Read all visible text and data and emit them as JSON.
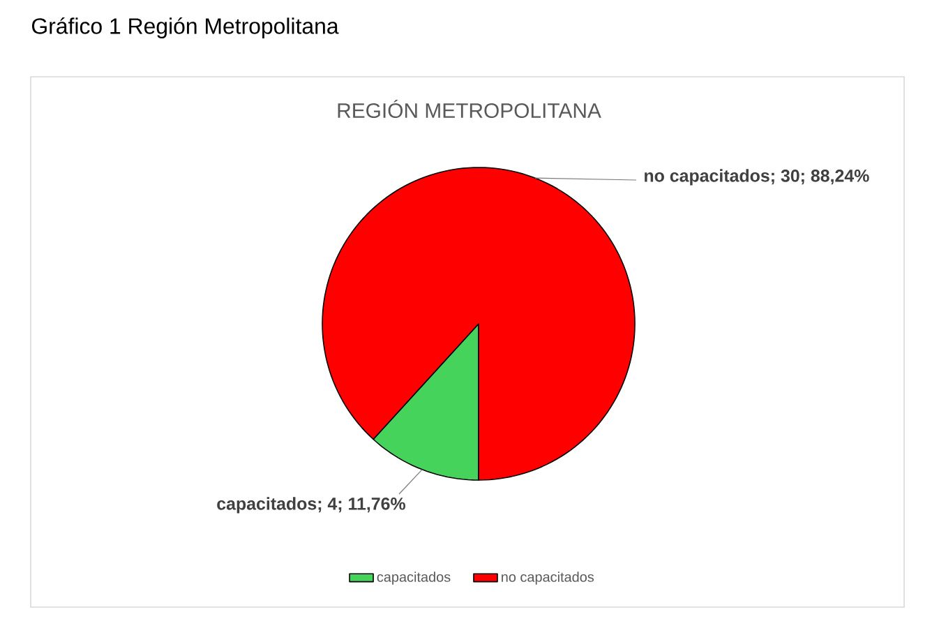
{
  "chart_data": {
    "type": "pie",
    "title": "REGIÓN METROPOLITANA",
    "annotations": [
      "Gráfico 1 Región Metropolitana"
    ],
    "categories": [
      "capacitados",
      "no capacitados"
    ],
    "values": [
      4,
      30
    ],
    "colors": [
      "#46d35c",
      "#ff0000"
    ],
    "value_labels": [
      "capacitados; 4; 11,76%",
      "no capacitados; 30; 88,24%"
    ],
    "legend": "bottom"
  }
}
